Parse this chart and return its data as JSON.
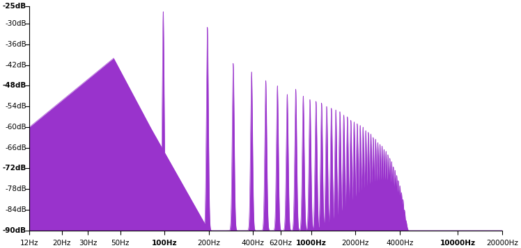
{
  "xlim_log": [
    12,
    20000
  ],
  "ylim": [
    -90,
    -25
  ],
  "yticks": [
    -90,
    -84,
    -78,
    -72,
    -66,
    -60,
    -54,
    -48,
    -42,
    -36,
    -30,
    -25
  ],
  "ytick_labels": [
    "-90dB",
    "-84dB",
    "-78dB",
    "-72dB",
    "-66dB",
    "-60dB",
    "-54dB",
    "-48dB",
    "-42dB",
    "-36dB",
    "-30dB",
    "-25dB"
  ],
  "yticks_bold": [
    -25,
    -48,
    -72,
    -90
  ],
  "xtick_positions": [
    12,
    20,
    30,
    50,
    100,
    200,
    400,
    620,
    1000,
    2000,
    4000,
    10000,
    20000
  ],
  "xtick_labels": [
    "12Hz",
    "20Hz",
    "30Hz",
    "50Hz",
    "100Hz",
    "200Hz",
    "400Hz",
    "620Hz",
    "1000Hz",
    "2000Hz",
    "4000Hz",
    "10000Hz",
    "20000Hz"
  ],
  "xticks_bold": [
    100,
    1000,
    10000
  ],
  "fill_color": "#9933CC",
  "line_color": "#9933CC",
  "bg_color": "#ffffff",
  "fundamental_freq": 98.0,
  "noise_floor": -90,
  "harmonic_amplitudes": [
    -26.5,
    -31.0,
    -41.5,
    -44.0,
    -46.5,
    -48.0,
    -50.5,
    -49.0,
    -51.0,
    -52.0,
    -52.5,
    -53.0,
    -54.0,
    -54.5,
    -55.0,
    -55.5,
    -56.5,
    -57.0,
    -58.0,
    -58.5,
    -59.0,
    -59.5,
    -60.0,
    -61.0,
    -61.5,
    -62.0,
    -63.0,
    -63.5,
    -64.5,
    -65.0,
    -65.5,
    -66.5,
    -67.0,
    -68.0,
    -69.0,
    -70.0,
    -71.5,
    -72.5,
    -74.0,
    -75.5,
    -77.0,
    -79.0,
    -81.0,
    -84.0,
    -87.0
  ]
}
